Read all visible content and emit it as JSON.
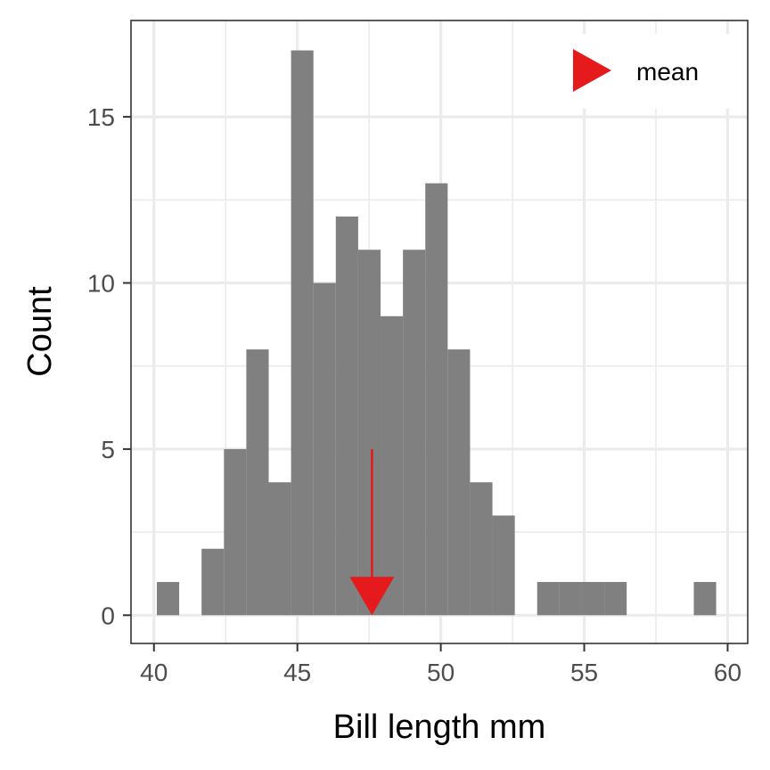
{
  "chart_data": {
    "type": "bar",
    "xlabel": "Bill length mm",
    "ylabel": "Count",
    "xlim": [
      39.2,
      60.7
    ],
    "ylim": [
      -0.85,
      17.9
    ],
    "x_ticks": [
      40,
      45,
      50,
      55,
      60
    ],
    "y_ticks": [
      0,
      5,
      10,
      15
    ],
    "bin_width": 0.78,
    "bins_start": [
      40.1,
      40.88,
      41.66,
      42.44,
      43.22,
      44.0,
      44.78,
      45.56,
      46.34,
      47.12,
      47.9,
      48.68,
      49.46,
      50.24,
      51.02,
      51.8,
      52.58,
      53.36,
      54.14,
      54.92,
      55.7,
      56.48,
      57.26,
      58.04,
      58.82
    ],
    "values": [
      1,
      0,
      2,
      5,
      8,
      4,
      17,
      10,
      12,
      11,
      9,
      11,
      13,
      8,
      4,
      3,
      0,
      1,
      1,
      1,
      1,
      0,
      0,
      0,
      1
    ],
    "mean": 47.6,
    "mean_marker_from_y": 5,
    "grid": true,
    "legend_position": "top-right",
    "legend": [
      {
        "label": "mean",
        "symbol": "triangle"
      }
    ],
    "colors": {
      "bars": "#808080",
      "mean": "#e41a1c",
      "grid": "#ebebeb"
    }
  }
}
